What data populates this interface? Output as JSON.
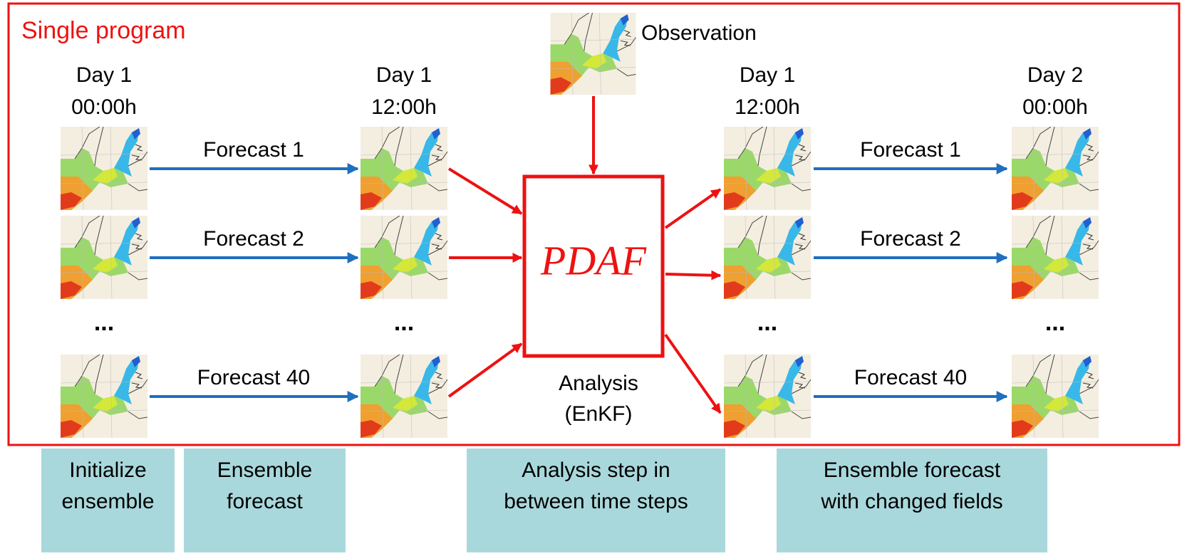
{
  "title": "Single program",
  "observation": "Observation",
  "columns": [
    {
      "header": [
        "Day 1",
        "00:00h"
      ]
    },
    {
      "header": [
        "Day 1",
        "12:00h"
      ]
    },
    {
      "header": [
        "Day 1",
        "12:00h"
      ]
    },
    {
      "header": [
        "Day 2",
        "00:00h"
      ]
    }
  ],
  "forecasts_left": [
    "Forecast 1",
    "Forecast 2",
    "Forecast 40"
  ],
  "forecasts_right": [
    "Forecast 1",
    "Forecast 2",
    "Forecast 40"
  ],
  "ellipsis": "...",
  "filter": "PDAF",
  "analysis": [
    "Analysis",
    "(EnKF)"
  ],
  "steps": [
    [
      "Initialize",
      "ensemble"
    ],
    [
      "Ensemble",
      "forecast"
    ],
    [
      "Analysis step in",
      "between time steps"
    ],
    [
      "Ensemble forecast",
      "with changed fields"
    ]
  ]
}
